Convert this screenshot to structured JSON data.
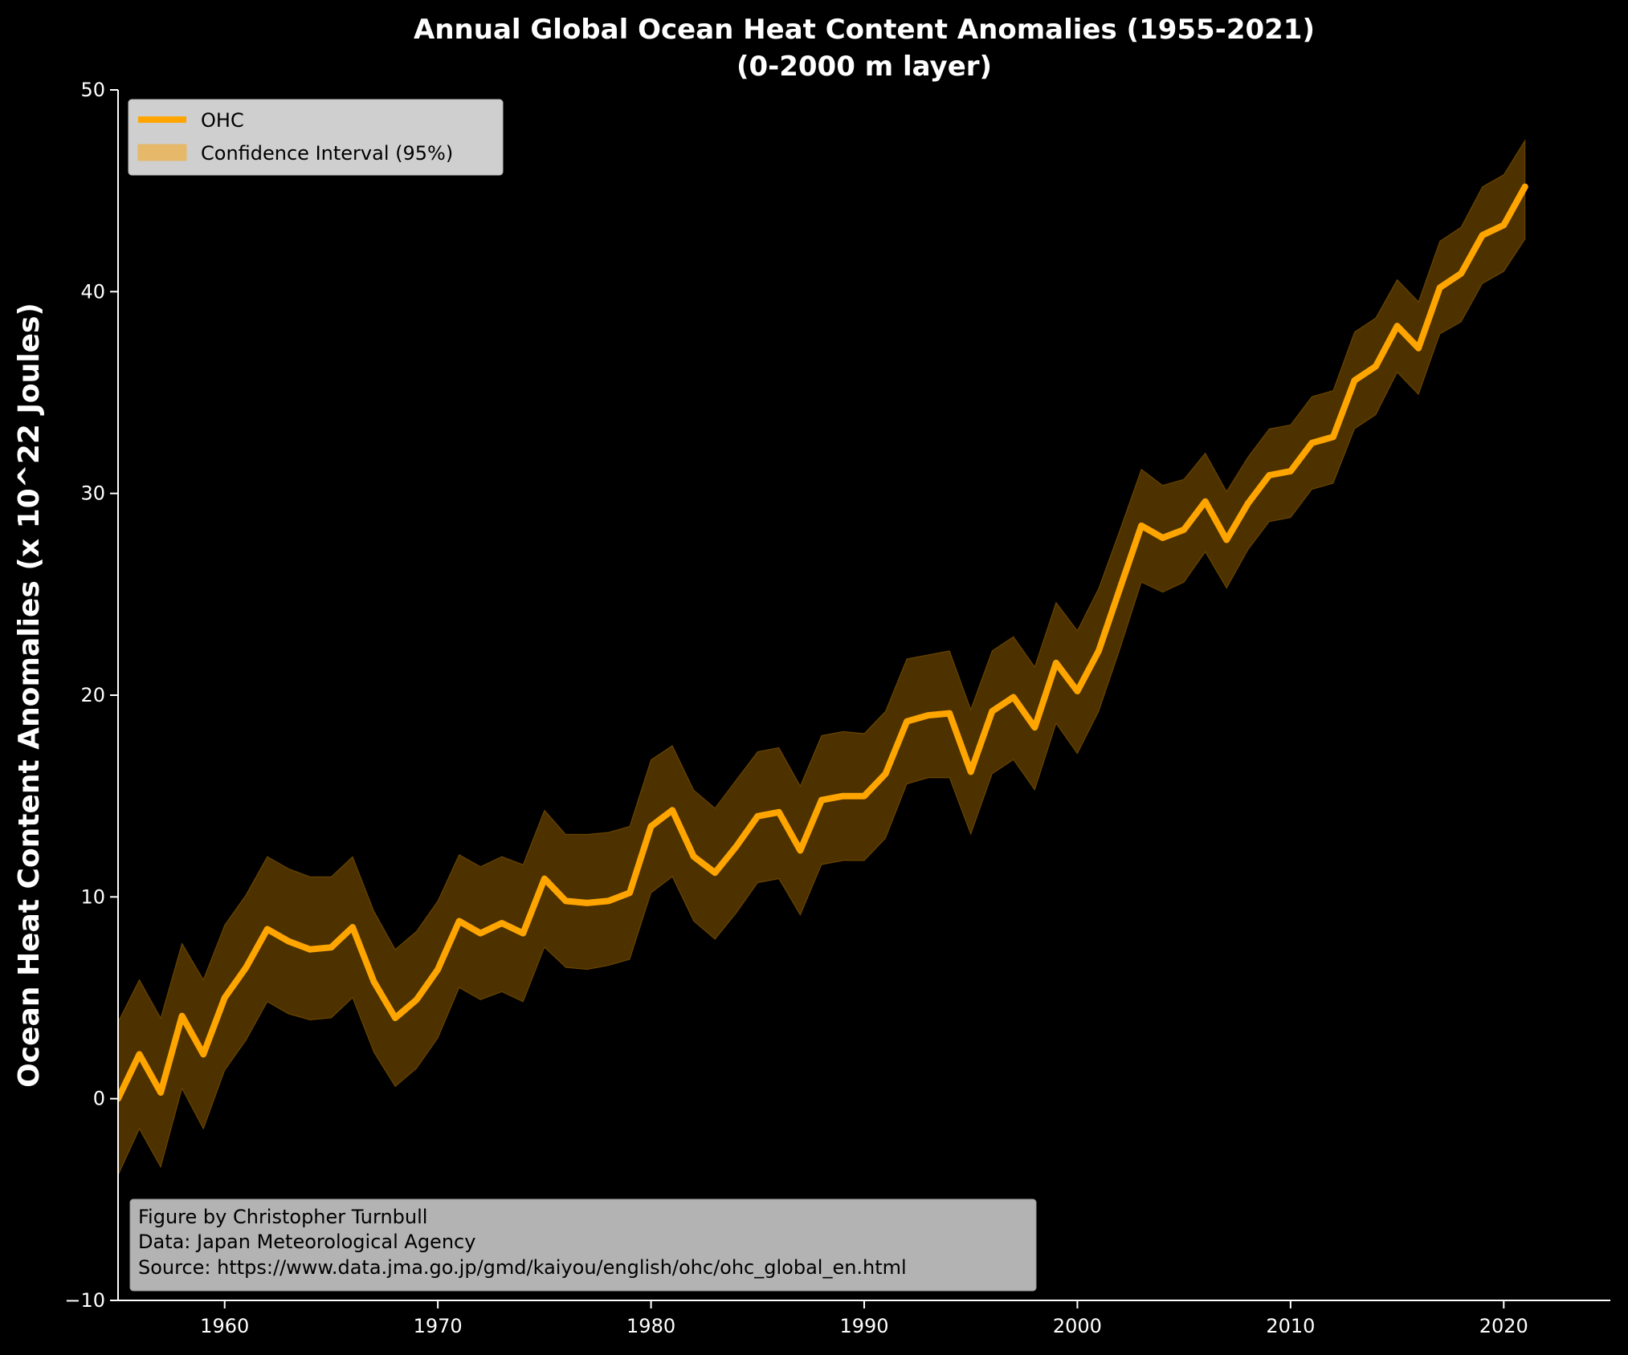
{
  "chart_data": {
    "type": "line",
    "title_line1": "Annual Global Ocean Heat Content Anomalies (1955-2021)",
    "title_line2": "(0-2000 m layer)",
    "xlabel": "",
    "ylabel": "Ocean Heat Content Anomalies (x 10^22 Joules)",
    "xlim": [
      1955,
      2025
    ],
    "ylim": [
      -10,
      50
    ],
    "xticks": [
      1960,
      1970,
      1980,
      1990,
      2000,
      2010,
      2020
    ],
    "yticks": [
      -10,
      0,
      10,
      20,
      30,
      40,
      50
    ],
    "ytick_labels": [
      "−10",
      "0",
      "10",
      "20",
      "30",
      "40",
      "50"
    ],
    "grid": false,
    "legend_position": "upper-left",
    "series": [
      {
        "name": "OHC",
        "color": "#FFA500",
        "x": [
          1955,
          1956,
          1957,
          1958,
          1959,
          1960,
          1961,
          1962,
          1963,
          1964,
          1965,
          1966,
          1967,
          1968,
          1969,
          1970,
          1971,
          1972,
          1973,
          1974,
          1975,
          1976,
          1977,
          1978,
          1979,
          1980,
          1981,
          1982,
          1983,
          1984,
          1985,
          1986,
          1987,
          1988,
          1989,
          1990,
          1991,
          1992,
          1993,
          1994,
          1995,
          1996,
          1997,
          1998,
          1999,
          2000,
          2001,
          2002,
          2003,
          2004,
          2005,
          2006,
          2007,
          2008,
          2009,
          2010,
          2011,
          2012,
          2013,
          2014,
          2015,
          2016,
          2017,
          2018,
          2019,
          2020,
          2021
        ],
        "y": [
          0.0,
          2.2,
          0.3,
          4.1,
          2.2,
          5.0,
          6.5,
          8.4,
          7.8,
          7.4,
          7.5,
          8.5,
          5.8,
          4.0,
          4.9,
          6.4,
          8.8,
          8.2,
          8.7,
          8.2,
          10.9,
          9.8,
          9.7,
          9.8,
          10.2,
          13.5,
          14.3,
          12.0,
          11.2,
          12.5,
          14.0,
          14.2,
          12.3,
          14.8,
          15.0,
          15.0,
          16.1,
          18.7,
          19.0,
          19.1,
          16.2,
          19.2,
          19.9,
          18.4,
          21.6,
          20.2,
          22.2,
          25.3,
          28.4,
          27.8,
          28.2,
          29.6,
          27.7,
          29.5,
          30.9,
          31.1,
          32.5,
          32.8,
          35.6,
          36.3,
          38.3,
          37.2,
          40.2,
          40.9,
          42.8,
          43.3,
          45.2
        ]
      },
      {
        "name": "Confidence Interval (95%)",
        "color": "#FFA500",
        "lower": [
          -3.8,
          -1.5,
          -3.4,
          0.5,
          -1.5,
          1.4,
          2.9,
          4.8,
          4.2,
          3.9,
          4.0,
          5.0,
          2.3,
          0.6,
          1.5,
          3.0,
          5.5,
          4.9,
          5.3,
          4.8,
          7.5,
          6.5,
          6.4,
          6.6,
          6.9,
          10.2,
          11.0,
          8.8,
          7.9,
          9.2,
          10.7,
          10.9,
          9.1,
          11.6,
          11.8,
          11.8,
          12.9,
          15.6,
          15.9,
          15.9,
          13.1,
          16.1,
          16.8,
          15.3,
          18.6,
          17.1,
          19.2,
          22.3,
          25.6,
          25.1,
          25.6,
          27.1,
          25.3,
          27.2,
          28.6,
          28.8,
          30.2,
          30.5,
          33.2,
          33.9,
          36.0,
          34.9,
          37.9,
          38.5,
          40.4,
          41.0,
          42.6
        ],
        "upper": [
          3.8,
          5.9,
          4.0,
          7.7,
          5.9,
          8.6,
          10.1,
          12.0,
          11.4,
          11.0,
          11.0,
          12.0,
          9.3,
          7.4,
          8.3,
          9.8,
          12.1,
          11.5,
          12.0,
          11.6,
          14.3,
          13.1,
          13.1,
          13.2,
          13.5,
          16.8,
          17.5,
          15.3,
          14.4,
          15.8,
          17.2,
          17.4,
          15.5,
          18.0,
          18.2,
          18.1,
          19.2,
          21.8,
          22.0,
          22.2,
          19.3,
          22.2,
          22.9,
          21.4,
          24.6,
          23.2,
          25.3,
          28.2,
          31.2,
          30.4,
          30.7,
          32.0,
          30.1,
          31.8,
          33.2,
          33.4,
          34.8,
          35.1,
          38.0,
          38.7,
          40.6,
          39.5,
          42.5,
          43.2,
          45.2,
          45.8,
          47.5
        ]
      }
    ]
  },
  "legend": {
    "items": [
      {
        "label": "OHC",
        "kind": "line",
        "color": "#FFA500"
      },
      {
        "label": "Confidence Interval (95%)",
        "kind": "patch",
        "color": "#E6B86A"
      }
    ]
  },
  "credits": {
    "line1": "Figure by Christopher Turnbull",
    "line2": "Data: Japan Meteorological Agency",
    "line3": "Source: https://www.data.jma.go.jp/gmd/kaiyou/english/ohc/ohc_global_en.html"
  },
  "colors": {
    "background": "#000000",
    "axis": "#FFFFFF",
    "line": "#FFA500",
    "band": "#FFA500"
  }
}
